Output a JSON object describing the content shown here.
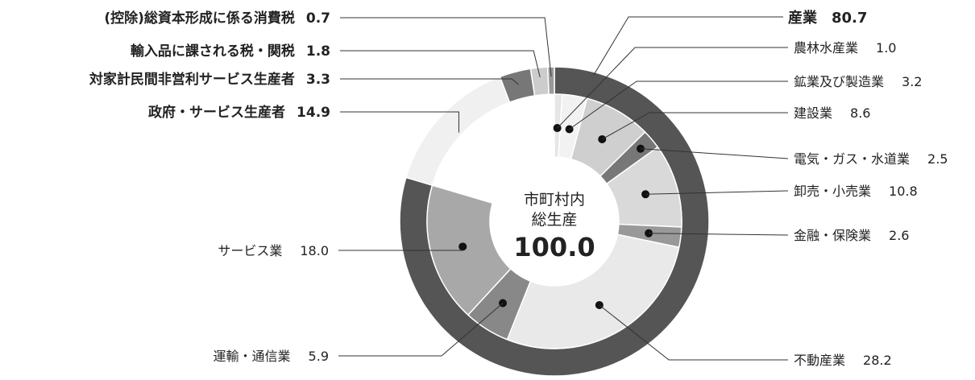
{
  "chart_data": {
    "type": "pie",
    "center": {
      "line1": "市町村内",
      "line2": "総生産",
      "total": "100.0"
    },
    "outer": [
      {
        "name": "産業",
        "value": 80.7,
        "display": "80.7",
        "color": "#555555"
      },
      {
        "name": "政府・サービス生産者",
        "value": 14.9,
        "display": "14.9",
        "color": "#f0f0f0"
      },
      {
        "name": "対家計民間非営利サービス生産者",
        "value": 3.3,
        "display": "3.3",
        "color": "#777777"
      },
      {
        "name": "輸入品に課される税・関税",
        "value": 1.8,
        "display": "1.8",
        "color": "#cccccc"
      },
      {
        "name": "(控除)総資本形成に係る消費税",
        "value": 0.7,
        "display": "0.7",
        "color": "#999999"
      }
    ],
    "inner": [
      {
        "name": "農林水産業",
        "value": 1.0,
        "display": "1.0",
        "color": "#e6e6e6"
      },
      {
        "name": "鉱業及び製造業",
        "value": 3.2,
        "display": "3.2",
        "color": "#f2f2f2"
      },
      {
        "name": "建設業",
        "value": 8.6,
        "display": "8.6",
        "color": "#cfcfcf"
      },
      {
        "name": "電気・ガス・水道業",
        "value": 2.5,
        "display": "2.5",
        "color": "#777777"
      },
      {
        "name": "卸売・小売業",
        "value": 10.8,
        "display": "10.8",
        "color": "#d9d9d9"
      },
      {
        "name": "金融・保険業",
        "value": 2.6,
        "display": "2.6",
        "color": "#999999"
      },
      {
        "name": "不動産業",
        "value": 28.2,
        "display": "28.2",
        "color": "#e9e9e9"
      },
      {
        "name": "運輸・通信業",
        "value": 5.9,
        "display": "5.9",
        "color": "#888888"
      },
      {
        "name": "サービス業",
        "value": 18.0,
        "display": "18.0",
        "color": "#a8a8a8"
      }
    ]
  }
}
